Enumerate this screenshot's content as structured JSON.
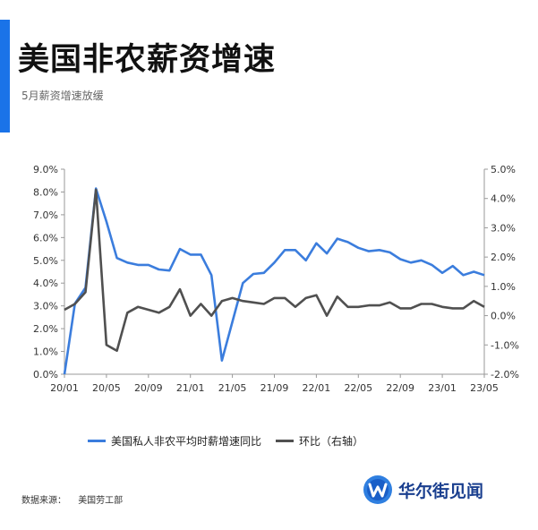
{
  "header": {
    "title": "美国非农薪资增速",
    "subtitle": "5月薪资增速放缓"
  },
  "colors": {
    "accent": "#1a73e8",
    "series_blue": "#3b7ddd",
    "series_gray": "#505050",
    "logo_blue": "#1a3f8f"
  },
  "legend": {
    "items": [
      {
        "label": "美国私人非农平均时薪增速同比",
        "color": "#3b7ddd"
      },
      {
        "label": "环比（右轴）",
        "color": "#505050"
      }
    ]
  },
  "footer": {
    "source_label": "数据来源：",
    "source_value": "美国劳工部",
    "logo_text": "华尔街见闻"
  },
  "chart_data": {
    "type": "line",
    "x": [
      "20/01",
      "20/02",
      "20/03",
      "20/04",
      "20/05",
      "20/06",
      "20/07",
      "20/08",
      "20/09",
      "20/10",
      "20/11",
      "20/12",
      "21/01",
      "21/02",
      "21/03",
      "21/04",
      "21/05",
      "21/06",
      "21/07",
      "21/08",
      "21/09",
      "21/10",
      "21/11",
      "21/12",
      "22/01",
      "22/02",
      "22/03",
      "22/04",
      "22/05",
      "22/06",
      "22/07",
      "22/08",
      "22/09",
      "22/10",
      "22/11",
      "22/12",
      "23/01",
      "23/02",
      "23/03",
      "23/04",
      "23/05"
    ],
    "x_tick_labels": [
      "20/01",
      "20/05",
      "20/09",
      "21/01",
      "21/05",
      "21/09",
      "22/01",
      "22/05",
      "22/09",
      "23/01",
      "23/05"
    ],
    "series": [
      {
        "name": "美国私人非农平均时薪增速同比",
        "axis": "left",
        "values": [
          0.0,
          3.1,
          3.8,
          8.15,
          6.7,
          5.1,
          4.9,
          4.8,
          4.8,
          4.6,
          4.55,
          5.5,
          5.25,
          5.25,
          4.35,
          0.6,
          2.3,
          4.0,
          4.4,
          4.45,
          4.9,
          5.45,
          5.45,
          5.0,
          5.75,
          5.3,
          5.95,
          5.8,
          5.55,
          5.4,
          5.45,
          5.35,
          5.05,
          4.9,
          5.0,
          4.8,
          4.45,
          4.75,
          4.35,
          4.5,
          4.35
        ]
      },
      {
        "name": "环比（右轴）",
        "axis": "right",
        "values": [
          0.2,
          0.4,
          0.8,
          4.3,
          -1.0,
          -1.2,
          0.1,
          0.3,
          0.2,
          0.1,
          0.3,
          0.9,
          0.0,
          0.4,
          0.0,
          0.5,
          0.6,
          0.5,
          0.45,
          0.4,
          0.6,
          0.6,
          0.3,
          0.6,
          0.7,
          0.0,
          0.65,
          0.3,
          0.3,
          0.35,
          0.35,
          0.45,
          0.25,
          0.25,
          0.4,
          0.4,
          0.3,
          0.25,
          0.25,
          0.5,
          0.3
        ]
      }
    ],
    "y_left": {
      "ylim": [
        0,
        9
      ],
      "ticks": [
        "0.0%",
        "1.0%",
        "2.0%",
        "3.0%",
        "4.0%",
        "5.0%",
        "6.0%",
        "7.0%",
        "8.0%",
        "9.0%"
      ]
    },
    "y_right": {
      "ylim": [
        -2,
        5
      ],
      "ticks": [
        "-2.0%",
        "-1.0%",
        "0.0%",
        "1.0%",
        "2.0%",
        "3.0%",
        "4.0%",
        "5.0%"
      ]
    },
    "legend_position": "bottom",
    "grid": false
  }
}
